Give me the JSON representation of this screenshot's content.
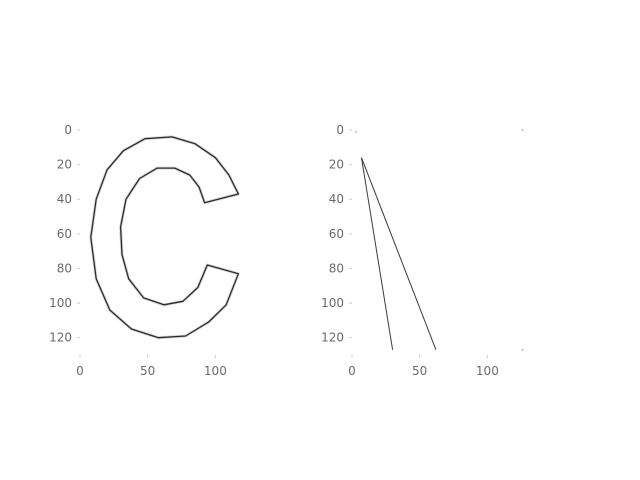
{
  "chart_data": [
    {
      "type": "image",
      "xlim": [
        0,
        130
      ],
      "ylim": [
        130,
        0
      ],
      "x_ticks": [
        "0",
        "50",
        "100"
      ],
      "y_ticks": [
        "0",
        "20",
        "40",
        "60",
        "80",
        "100",
        "120"
      ],
      "x_tick_values": [
        0,
        50,
        100
      ],
      "y_tick_values": [
        0,
        20,
        40,
        60,
        80,
        100,
        120
      ],
      "content": "Edge map of the letter C",
      "outer_outline": [
        [
          117,
          37
        ],
        [
          110,
          26
        ],
        [
          100,
          16
        ],
        [
          85,
          8
        ],
        [
          68,
          4
        ],
        [
          48,
          5
        ],
        [
          32,
          12
        ],
        [
          20,
          23
        ],
        [
          12,
          40
        ],
        [
          8,
          62
        ],
        [
          12,
          86
        ],
        [
          22,
          104
        ],
        [
          38,
          115
        ],
        [
          58,
          120
        ],
        [
          78,
          119
        ],
        [
          95,
          111
        ],
        [
          108,
          101
        ],
        [
          117,
          83
        ],
        [
          94,
          78
        ],
        [
          87,
          91
        ],
        [
          76,
          99
        ],
        [
          62,
          101
        ],
        [
          47,
          97
        ],
        [
          36,
          86
        ],
        [
          31,
          72
        ],
        [
          30,
          56
        ],
        [
          34,
          40
        ],
        [
          44,
          28
        ],
        [
          57,
          22
        ],
        [
          70,
          22
        ],
        [
          81,
          26
        ],
        [
          88,
          33
        ],
        [
          92,
          42
        ]
      ],
      "inner_outline": []
    },
    {
      "type": "image",
      "xlim": [
        0,
        130
      ],
      "ylim": [
        130,
        0
      ],
      "x_ticks": [
        "0",
        "50",
        "100"
      ],
      "y_ticks": [
        "0",
        "20",
        "40",
        "60",
        "80",
        "100",
        "120"
      ],
      "x_tick_values": [
        0,
        50,
        100
      ],
      "y_tick_values": [
        0,
        20,
        40,
        60,
        80,
        100,
        120
      ],
      "content": "Two diverging edge lines",
      "lines": [
        [
          [
            7,
            16
          ],
          [
            30,
            127
          ]
        ],
        [
          [
            7,
            16
          ],
          [
            62,
            127
          ]
        ]
      ],
      "specks": [
        [
          3,
          1
        ],
        [
          126,
          0
        ],
        [
          126,
          127
        ]
      ]
    }
  ]
}
